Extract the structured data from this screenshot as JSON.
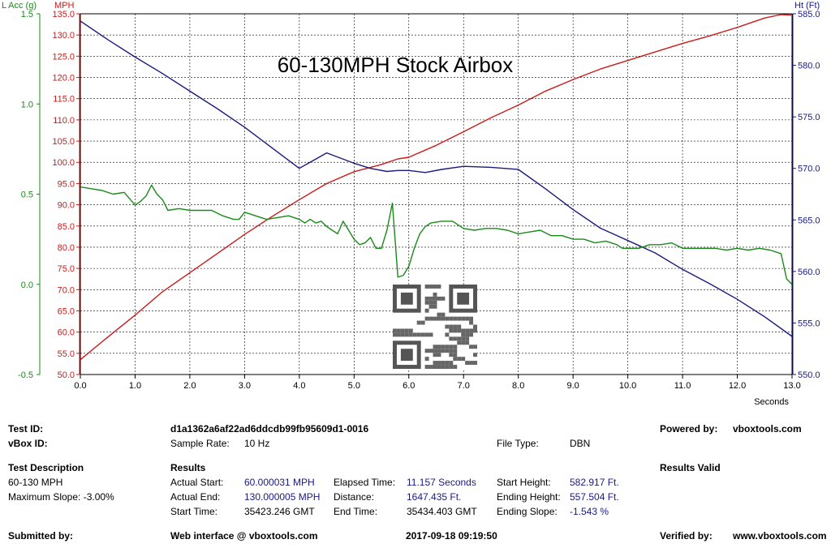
{
  "chart_data": {
    "type": "line",
    "title": "60-130MPH Stock Airbox",
    "xlabel": "Seconds",
    "xlim": [
      0,
      13
    ],
    "x_ticks": [
      "0.0",
      "1.0",
      "2.0",
      "3.0",
      "4.0",
      "5.0",
      "6.0",
      "7.0",
      "8.0",
      "9.0",
      "10.0",
      "11.0",
      "12.0",
      "13.0"
    ],
    "axes": {
      "lacc": {
        "label": "L Acc (g)",
        "range": [
          -0.5,
          1.5
        ],
        "ticks": [
          "-0.5",
          "0.0",
          "0.5",
          "1.0",
          "1.5"
        ],
        "color": "#1a8a1a"
      },
      "mph": {
        "label": "MPH",
        "range": [
          50,
          135
        ],
        "ticks": [
          "50.0",
          "55.0",
          "60.0",
          "65.0",
          "70.0",
          "75.0",
          "80.0",
          "85.0",
          "90.0",
          "95.0",
          "100.0",
          "105.0",
          "110.0",
          "115.0",
          "120.0",
          "125.0",
          "130.0",
          "135.0"
        ],
        "color": "#cc1a1a"
      },
      "ht": {
        "label": "Ht (Ft)",
        "range": [
          550,
          585
        ],
        "ticks": [
          "550.0",
          "555.0",
          "560.0",
          "565.0",
          "570.0",
          "575.0",
          "580.0",
          "585.0"
        ],
        "color": "#1a1a80"
      }
    },
    "grid": true,
    "series": [
      {
        "axis": "mph",
        "color": "#cc1a1a",
        "x": [
          0,
          0.5,
          1,
          1.5,
          2,
          2.5,
          3,
          3.5,
          4,
          4.5,
          5,
          5.5,
          5.8,
          6,
          6.5,
          7,
          7.5,
          8,
          8.5,
          9,
          9.5,
          10,
          10.5,
          11,
          11.5,
          12,
          12.5,
          12.8,
          13
        ],
        "y": [
          53.5,
          58.8,
          64,
          69.5,
          74,
          78.5,
          83,
          87.2,
          91.2,
          95,
          97.8,
          99.5,
          100.8,
          101.2,
          104,
          107.2,
          110.5,
          113.5,
          116.8,
          119.5,
          122,
          124,
          126,
          128,
          129.8,
          131.8,
          134,
          134.8,
          134.7
        ]
      },
      {
        "axis": "ht",
        "color": "#1a1a80",
        "x": [
          0,
          0.5,
          1,
          1.5,
          2,
          2.5,
          3,
          3.5,
          4,
          4.5,
          5,
          5.3,
          5.6,
          5.8,
          6,
          6.3,
          6.6,
          7,
          7.5,
          8,
          8.5,
          9,
          9.5,
          10,
          10.5,
          11,
          11.5,
          12,
          12.5,
          13
        ],
        "y": [
          584.3,
          582.5,
          580.8,
          579.2,
          577.5,
          575.8,
          574,
          572,
          570,
          571.5,
          570.5,
          570,
          569.7,
          569.8,
          569.8,
          569.6,
          569.9,
          570.2,
          570.1,
          569.9,
          568,
          566,
          564.2,
          563,
          561.8,
          560.2,
          558.8,
          557.3,
          555.6,
          553.7
        ]
      },
      {
        "axis": "lacc",
        "color": "#1a8a1a",
        "x": [
          0,
          0.2,
          0.4,
          0.6,
          0.8,
          1,
          1.1,
          1.2,
          1.3,
          1.4,
          1.5,
          1.6,
          1.8,
          2,
          2.2,
          2.4,
          2.6,
          2.8,
          2.9,
          3,
          3.2,
          3.4,
          3.6,
          3.8,
          4,
          4.1,
          4.2,
          4.3,
          4.4,
          4.5,
          4.6,
          4.7,
          4.8,
          4.9,
          5,
          5.1,
          5.2,
          5.3,
          5.4,
          5.5,
          5.6,
          5.7,
          5.8,
          5.9,
          6,
          6.1,
          6.2,
          6.3,
          6.4,
          6.6,
          6.8,
          7,
          7.2,
          7.4,
          7.6,
          7.8,
          8,
          8.2,
          8.4,
          8.6,
          8.8,
          9,
          9.2,
          9.4,
          9.6,
          9.8,
          9.9,
          10,
          10.2,
          10.4,
          10.6,
          10.8,
          11,
          11.2,
          11.4,
          11.6,
          11.8,
          12,
          12.2,
          12.4,
          12.6,
          12.8,
          12.9,
          13
        ],
        "y": [
          0.54,
          0.53,
          0.52,
          0.5,
          0.51,
          0.44,
          0.46,
          0.49,
          0.55,
          0.5,
          0.47,
          0.41,
          0.42,
          0.41,
          0.41,
          0.41,
          0.38,
          0.36,
          0.36,
          0.4,
          0.38,
          0.36,
          0.37,
          0.38,
          0.36,
          0.34,
          0.36,
          0.34,
          0.35,
          0.32,
          0.3,
          0.28,
          0.35,
          0.3,
          0.25,
          0.22,
          0.23,
          0.26,
          0.2,
          0.2,
          0.3,
          0.45,
          0.04,
          0.05,
          0.1,
          0.2,
          0.28,
          0.32,
          0.34,
          0.35,
          0.35,
          0.31,
          0.3,
          0.31,
          0.31,
          0.3,
          0.28,
          0.29,
          0.3,
          0.27,
          0.27,
          0.25,
          0.25,
          0.23,
          0.24,
          0.22,
          0.2,
          0.2,
          0.2,
          0.22,
          0.22,
          0.23,
          0.2,
          0.2,
          0.2,
          0.2,
          0.19,
          0.2,
          0.19,
          0.2,
          0.19,
          0.17,
          0.03,
          0.0
        ]
      }
    ]
  },
  "info": {
    "test_id_label": "Test ID:",
    "test_id": "d1a1362a6af22ad6ddcdb99fb95609d1-0016",
    "powered_label": "Powered by:",
    "powered_value": "vboxtools.com",
    "vbox_id_label": "vBox ID:",
    "sample_rate_label": "Sample Rate:",
    "sample_rate": "10 Hz",
    "file_type_label": "File Type:",
    "file_type": "DBN",
    "desc_heading": "Test Description",
    "desc_line1": "60-130 MPH",
    "desc_line2": "Maximum Slope:  -3.00%",
    "results_heading": "Results",
    "results_valid": "Results Valid",
    "actual_start_label": "Actual Start:",
    "actual_start": "60.000031 MPH",
    "elapsed_label": "Elapsed Time:",
    "elapsed": "11.157 Seconds",
    "start_height_label": "Start Height:",
    "start_height": "582.917 Ft.",
    "actual_end_label": "Actual End:",
    "actual_end": "130.000005 MPH",
    "distance_label": "Distance:",
    "distance": "1647.435 Ft.",
    "ending_height_label": "Ending Height:",
    "ending_height": "557.504 Ft.",
    "start_time_label": "Start Time:",
    "start_time": "35423.246 GMT",
    "end_time_label": "End Time:",
    "end_time": "35434.403 GMT",
    "ending_slope_label": "Ending Slope:",
    "ending_slope": "-1.543 %",
    "submitted_label": "Submitted by:",
    "web_label": "Web interface @ vboxtools.com",
    "timestamp": "2017-09-18 09:19:50",
    "verified_label": "Verified by:",
    "verified_value": "www.vboxtools.com"
  }
}
